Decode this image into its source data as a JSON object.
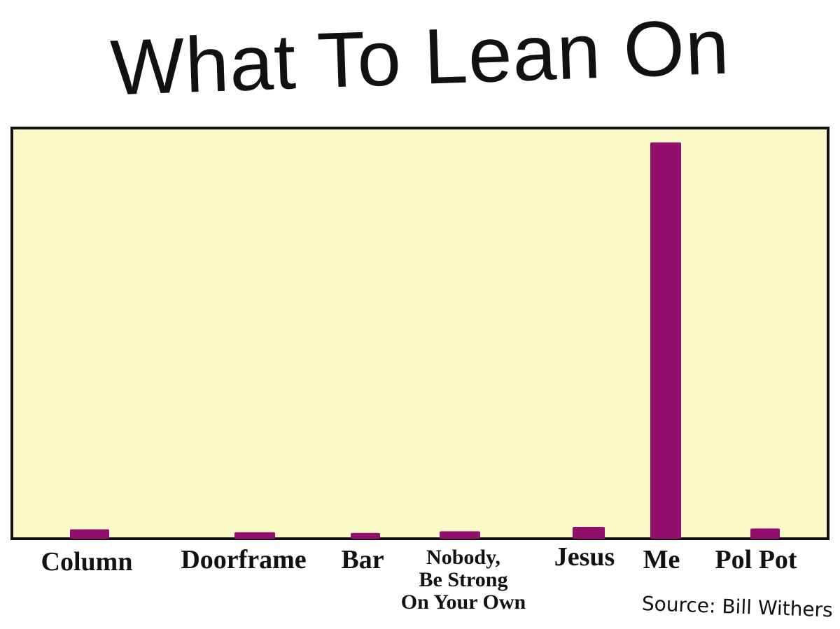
{
  "chart_data": {
    "type": "bar",
    "title": "What To Lean On",
    "categories": [
      "Column",
      "Doorframe",
      "Bar",
      "Nobody, Be Strong On Your Own",
      "Jesus",
      "Me",
      "Pol Pot"
    ],
    "category_lines": [
      [
        "Column"
      ],
      [
        "Doorframe"
      ],
      [
        "Bar"
      ],
      [
        "Nobody,",
        "Be Strong",
        "On Your Own"
      ],
      [
        "Jesus"
      ],
      [
        "Me"
      ],
      [
        "Pol Pot"
      ]
    ],
    "values": [
      2.3,
      1.6,
      1.4,
      1.8,
      2.9,
      96.5,
      2.5
    ],
    "ylim": [
      0,
      100
    ],
    "xlabel": "",
    "ylabel": "",
    "grid": false,
    "source": "Source: Bill Withers",
    "colors": {
      "plot_background": "#fcfac8",
      "bar": "#930f6e",
      "frame": "#111111"
    }
  }
}
